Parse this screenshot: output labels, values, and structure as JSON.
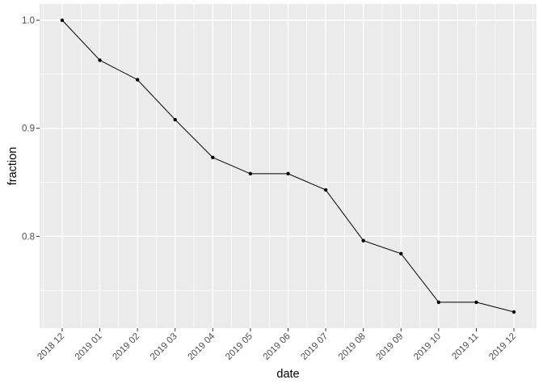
{
  "figure": {
    "background": "#FFFFFF",
    "panel_background": "#EBEBEB",
    "grid_major_color": "#FFFFFF",
    "grid_minor_color": "#FFFFFF",
    "tick_mark_color": "#333333",
    "axis_text_color": "#4D4D4D",
    "axis_title_color": "#000000"
  },
  "chart_data": {
    "type": "line",
    "title": "",
    "xlabel": "date",
    "ylabel": "fraction",
    "series_color": "#000000",
    "point_color": "#000000",
    "categories": [
      "2018 12",
      "2019 01",
      "2019 02",
      "2019 03",
      "2019 04",
      "2019 05",
      "2019 06",
      "2019 07",
      "2019 08",
      "2019 09",
      "2019 10",
      "2019 11",
      "2019 12"
    ],
    "values": [
      1.0,
      0.963,
      0.945,
      0.908,
      0.873,
      0.858,
      0.858,
      0.843,
      0.796,
      0.784,
      0.739,
      0.739,
      0.73
    ],
    "y_ticks": [
      {
        "value": 1.0,
        "label": "1.0"
      },
      {
        "value": 0.9,
        "label": "0.9"
      },
      {
        "value": 0.8,
        "label": "0.8"
      }
    ],
    "y_minor_ticks": [
      0.95,
      0.85,
      0.75
    ],
    "ylim": [
      0.715,
      1.015
    ],
    "x_expansion": 0.6,
    "grid": "major+minor",
    "legend": "none"
  }
}
